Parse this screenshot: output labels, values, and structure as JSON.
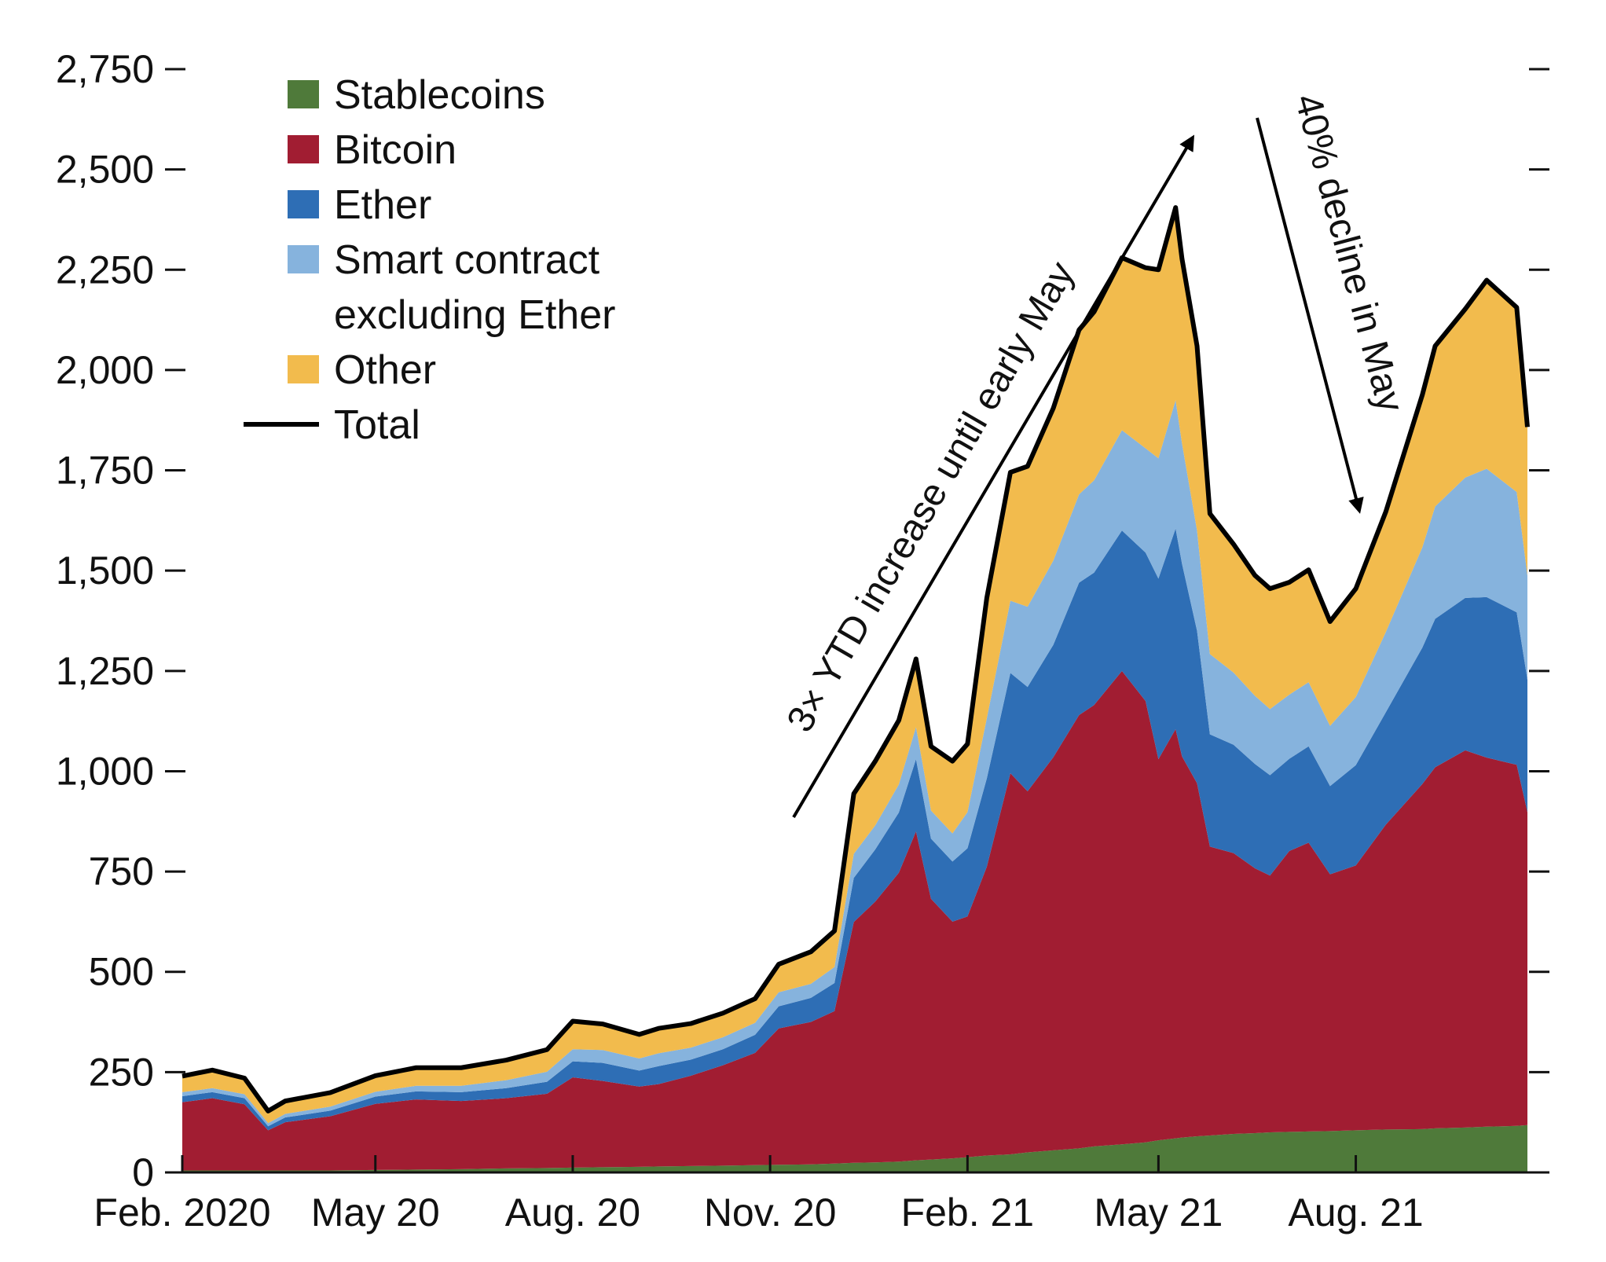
{
  "chart_data": {
    "type": "area",
    "stacked": true,
    "title": "",
    "xlabel": "",
    "ylabel": "",
    "ylim": [
      0,
      2750
    ],
    "yticks": [
      0,
      250,
      500,
      750,
      1000,
      1250,
      1500,
      1750,
      2000,
      2250,
      2500,
      2750
    ],
    "ytick_labels": [
      "0",
      "250",
      "500",
      "750",
      "1,000",
      "1,250",
      "1,500",
      "1,750",
      "2,000",
      "2,250",
      "2,500",
      "2,750"
    ],
    "xlim": [
      "2020-02-01",
      "2021-10-20"
    ],
    "xticks": [
      {
        "date": "2020-02-01",
        "label": "Feb. 2020"
      },
      {
        "date": "2020-05-01",
        "label": "May 20"
      },
      {
        "date": "2020-08-01",
        "label": "Aug. 20"
      },
      {
        "date": "2020-11-01",
        "label": "Nov. 20"
      },
      {
        "date": "2021-02-01",
        "label": "Feb. 21"
      },
      {
        "date": "2021-05-01",
        "label": "May 21"
      },
      {
        "date": "2021-08-01",
        "label": "Aug. 21"
      }
    ],
    "grid": false,
    "legend_position": "top-left",
    "x": [
      "2020-02-01",
      "2020-02-15",
      "2020-03-01",
      "2020-03-12",
      "2020-03-20",
      "2020-04-10",
      "2020-05-01",
      "2020-05-20",
      "2020-06-10",
      "2020-07-01",
      "2020-07-20",
      "2020-08-01",
      "2020-08-15",
      "2020-09-01",
      "2020-09-10",
      "2020-09-25",
      "2020-10-10",
      "2020-10-25",
      "2020-11-05",
      "2020-11-20",
      "2020-12-01",
      "2020-12-10",
      "2020-12-20",
      "2020-12-31",
      "2021-01-08",
      "2021-01-15",
      "2021-01-25",
      "2021-02-01",
      "2021-02-10",
      "2021-02-21",
      "2021-03-01",
      "2021-03-13",
      "2021-03-25",
      "2021-04-01",
      "2021-04-14",
      "2021-04-25",
      "2021-05-01",
      "2021-05-09",
      "2021-05-12",
      "2021-05-19",
      "2021-05-25",
      "2021-06-05",
      "2021-06-15",
      "2021-06-22",
      "2021-07-01",
      "2021-07-10",
      "2021-07-20",
      "2021-08-01",
      "2021-08-15",
      "2021-09-01",
      "2021-09-07",
      "2021-09-21",
      "2021-10-01",
      "2021-10-15",
      "2021-10-20"
    ],
    "series": [
      {
        "name": "Stablecoins",
        "color": "#4f7a3a",
        "values": [
          5,
          5,
          5,
          5,
          5,
          5,
          6,
          7,
          8,
          10,
          11,
          12,
          13,
          14,
          15,
          16,
          17,
          18,
          19,
          20,
          22,
          24,
          25,
          27,
          30,
          32,
          35,
          38,
          42,
          45,
          50,
          55,
          60,
          65,
          70,
          75,
          80,
          85,
          87,
          90,
          92,
          96,
          98,
          100,
          101,
          102,
          103,
          105,
          107,
          108,
          110,
          112,
          114,
          116,
          118
        ]
      },
      {
        "name": "Bitcoin",
        "color": "#a11d32",
        "values": [
          170,
          180,
          165,
          100,
          120,
          135,
          165,
          175,
          170,
          175,
          185,
          225,
          215,
          200,
          205,
          225,
          250,
          280,
          340,
          355,
          380,
          600,
          650,
          720,
          820,
          650,
          590,
          600,
          720,
          950,
          900,
          980,
          1080,
          1100,
          1180,
          1100,
          950,
          1020,
          950,
          880,
          720,
          700,
          660,
          640,
          700,
          720,
          640,
          660,
          760,
          860,
          900,
          940,
          920,
          900,
          780
        ]
      },
      {
        "name": "Ether",
        "color": "#2e6eb5",
        "values": [
          15,
          15,
          15,
          10,
          12,
          14,
          18,
          20,
          22,
          25,
          30,
          40,
          45,
          40,
          45,
          40,
          40,
          45,
          55,
          60,
          70,
          110,
          130,
          150,
          180,
          150,
          150,
          170,
          220,
          250,
          260,
          280,
          330,
          330,
          350,
          370,
          450,
          500,
          480,
          380,
          280,
          270,
          260,
          250,
          230,
          240,
          220,
          250,
          280,
          340,
          370,
          380,
          400,
          380,
          330
        ]
      },
      {
        "name": "Smart contract excluding Ether",
        "color": "#86b3dd",
        "values": [
          10,
          10,
          10,
          8,
          9,
          10,
          12,
          14,
          16,
          20,
          25,
          30,
          32,
          30,
          32,
          30,
          30,
          30,
          35,
          35,
          40,
          60,
          60,
          70,
          80,
          70,
          70,
          90,
          150,
          180,
          200,
          210,
          220,
          230,
          250,
          260,
          300,
          320,
          300,
          250,
          200,
          180,
          170,
          165,
          160,
          160,
          150,
          170,
          200,
          250,
          280,
          300,
          320,
          300,
          260
        ]
      },
      {
        "name": "Other",
        "color": "#f2bb4d",
        "values": [
          40,
          45,
          40,
          30,
          32,
          35,
          40,
          45,
          45,
          50,
          55,
          70,
          65,
          60,
          62,
          60,
          60,
          60,
          70,
          80,
          90,
          150,
          160,
          160,
          170,
          160,
          180,
          170,
          300,
          320,
          350,
          380,
          410,
          420,
          430,
          450,
          470,
          480,
          460,
          460,
          350,
          320,
          300,
          300,
          280,
          280,
          260,
          270,
          300,
          380,
          400,
          420,
          470,
          460,
          370
        ]
      }
    ],
    "total": {
      "name": "Total",
      "color": "#000000",
      "values": [
        240,
        255,
        235,
        153,
        178,
        199,
        241,
        261,
        261,
        280,
        306,
        377,
        370,
        344,
        359,
        371,
        397,
        433,
        519,
        550,
        602,
        944,
        1025,
        1127,
        1280,
        1062,
        1025,
        1068,
        1432,
        1745,
        1760,
        1905,
        2100,
        2145,
        2280,
        2255,
        2250,
        2405,
        2277,
        2060,
        1642,
        1566,
        1488,
        1455,
        1471,
        1502,
        1373,
        1455,
        1647,
        1938,
        2060,
        2152,
        2224,
        2156,
        1858
      ]
    },
    "legend": [
      "Stablecoins",
      "Bitcoin",
      "Ether",
      "Smart contract",
      "excluding Ether",
      "Other",
      "Total"
    ],
    "annotations": [
      {
        "text": "3× YTD increase until early May"
      },
      {
        "text": "40% decline in May"
      }
    ]
  }
}
